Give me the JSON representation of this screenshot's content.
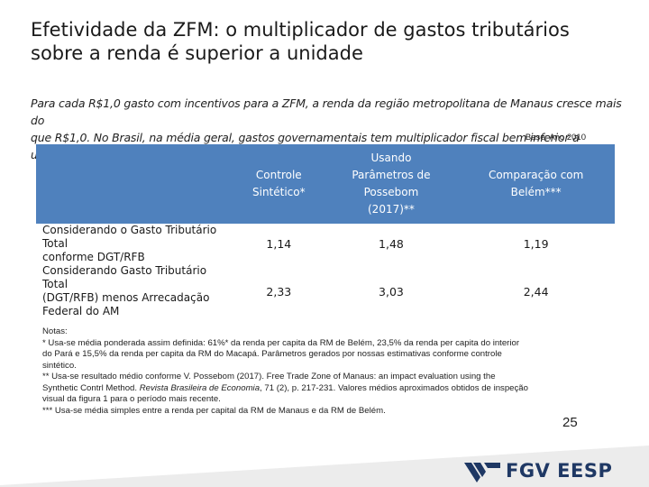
{
  "title": {
    "line1": "Efetividade da ZFM: o multiplicador de gastos tributários",
    "line2": "sobre a renda é superior a unidade"
  },
  "subtitle": {
    "line1": "Para cada R$1,0 gasto com incentivos para a ZFM, a renda da região metropolitana de Manaus cresce mais do",
    "line2": "que R$1,0. No Brasil, na média geral, gastos governamentais tem multiplicador fiscal bem inferior a unidade."
  },
  "base_note": "Base: Ano 2010",
  "table": {
    "headers": [
      {
        "lines": [
          "Controle",
          "Sintético*"
        ]
      },
      {
        "lines": [
          "Usando",
          "Parâmetros de",
          "Possebom",
          "(2017)**"
        ]
      },
      {
        "lines": [
          "Comparação com",
          "Belém***"
        ]
      }
    ],
    "rows": [
      {
        "label": [
          "Considerando o Gasto Tributário Total",
          "conforme DGT/RFB"
        ],
        "values": [
          "1,14",
          "1,48",
          "1,19"
        ]
      },
      {
        "label": [
          "Considerando Gasto Tributário Total",
          "(DGT/RFB) menos Arrecadação",
          "Federal do AM"
        ],
        "values": [
          "2,33",
          "3,03",
          "2,44"
        ]
      }
    ]
  },
  "notes": {
    "heading": "Notas:",
    "note1_lines": [
      "* Usa-se média ponderada assim definida: 61%* da renda per capita da RM de Belém, 23,5% da renda per capita do interior",
      "do Pará e 15,5% da renda per capita da RM do Macapá. Parâmetros gerados por nossas estimativas conforme controle",
      "sintético."
    ],
    "note2_line1": "** Usa-se resultado médio conforme V. Possebom (2017). Free Trade Zone of Manaus: an impact evaluation using the",
    "note2_line2_pre": "Synthetic Contrl Method. ",
    "note2_line2_italic": "Revista Brasileira de Economia",
    "note2_line2_post": ", 71 (2), p. 217-231. Valores médios aproximados obtidos de inspeção",
    "note2_line3": "visual da figura 1 para o período mais recente.",
    "note3": "*** Usa-se média simples entre a renda per capital da RM de Manaus e da RM de Belém."
  },
  "page_number": "25",
  "logo": {
    "text": "FGV EESP",
    "color": "#1f3864"
  },
  "colors": {
    "header_bg": "#4f81bd",
    "footer_gray": "#e6e6e6"
  }
}
